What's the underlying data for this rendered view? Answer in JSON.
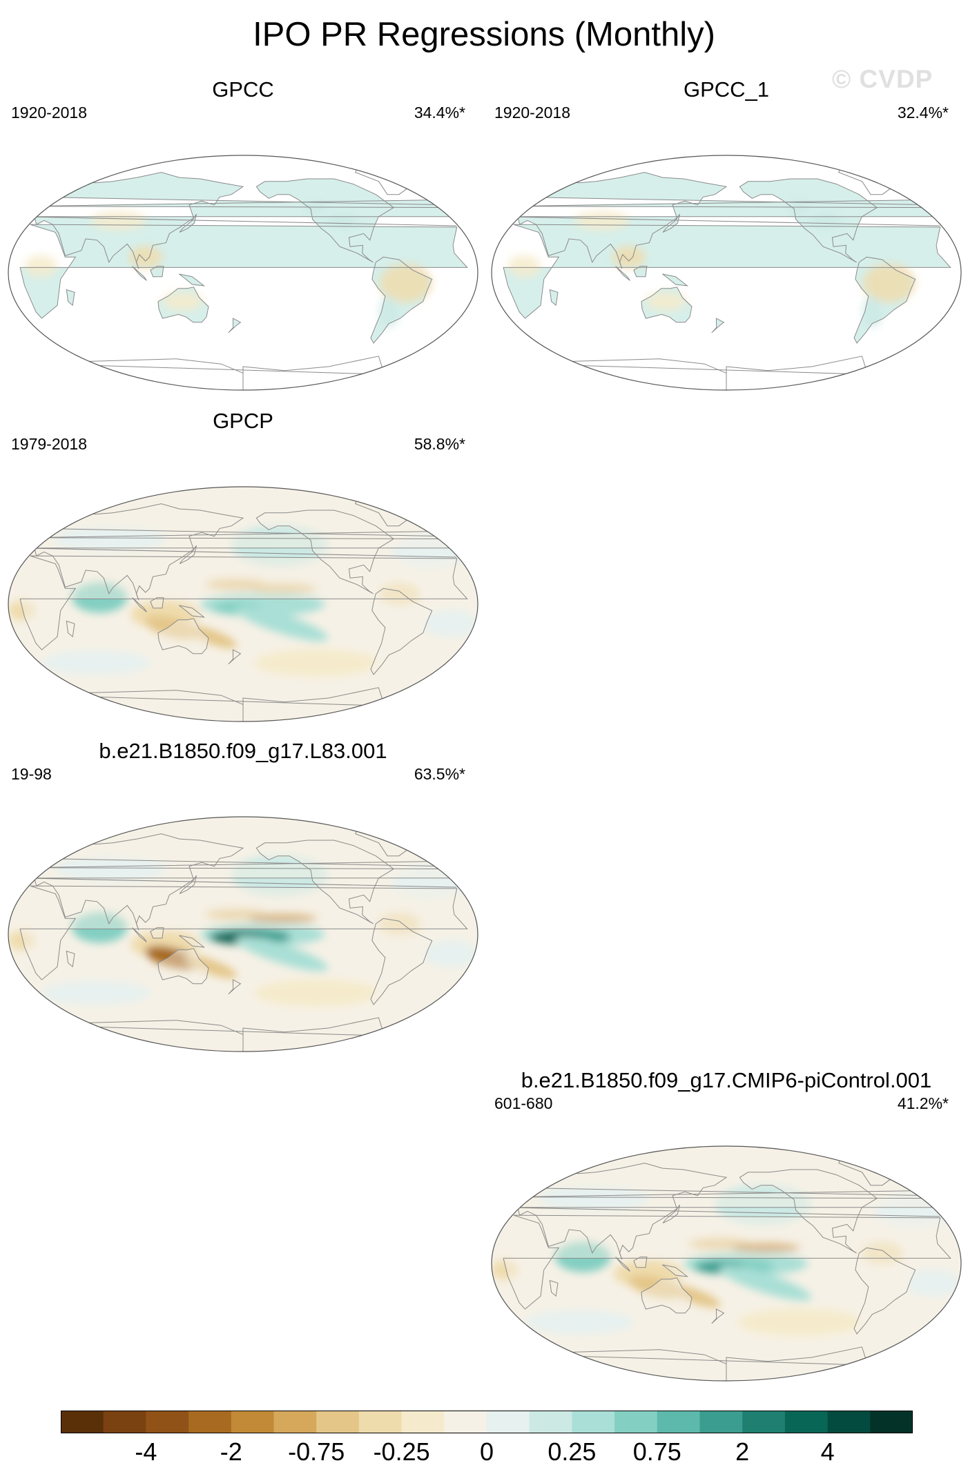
{
  "title": "IPO PR Regressions (Monthly)",
  "watermark": "© CVDP",
  "panels": [
    {
      "name": "GPCC",
      "period": "1920-2018",
      "pct": "34.4%*",
      "type": "obs-land",
      "intensity": 0.3,
      "sign": -1
    },
    {
      "name": "GPCC_1",
      "period": "1920-2018",
      "pct": "32.4%*",
      "type": "obs-land",
      "intensity": 0.3,
      "sign": -1
    },
    {
      "name": "GPCP",
      "period": "1979-2018",
      "pct": "58.8%*",
      "type": "full",
      "intensity": 0.55,
      "sign": 1
    },
    {
      "name": "b.e21.B1850.f09_g17.L83.001",
      "period": "19-98",
      "pct": "63.5%*",
      "type": "full",
      "intensity": 1.0,
      "sign": 1
    },
    {
      "name": "b.e21.B1850.f09_g17.CMIP6-piControl.001",
      "period": "601-680",
      "pct": "41.2%*",
      "type": "full",
      "intensity": 0.7,
      "sign": 1
    }
  ],
  "colorbar": {
    "colors": [
      "#5a3008",
      "#7a4211",
      "#905217",
      "#a86a20",
      "#c28a36",
      "#d5a85b",
      "#e4c689",
      "#efdcad",
      "#f5ebcc",
      "#f6f1e6",
      "#e7f1ef",
      "#cce9e4",
      "#a9dfd6",
      "#83cfc2",
      "#5cb9ab",
      "#3a9d8f",
      "#1f8072",
      "#086656",
      "#044b3f",
      "#023228"
    ],
    "tick_labels": [
      "-4",
      "-2",
      "-0.75",
      "-0.25",
      "0",
      "0.25",
      "0.75",
      "2",
      "4"
    ]
  }
}
